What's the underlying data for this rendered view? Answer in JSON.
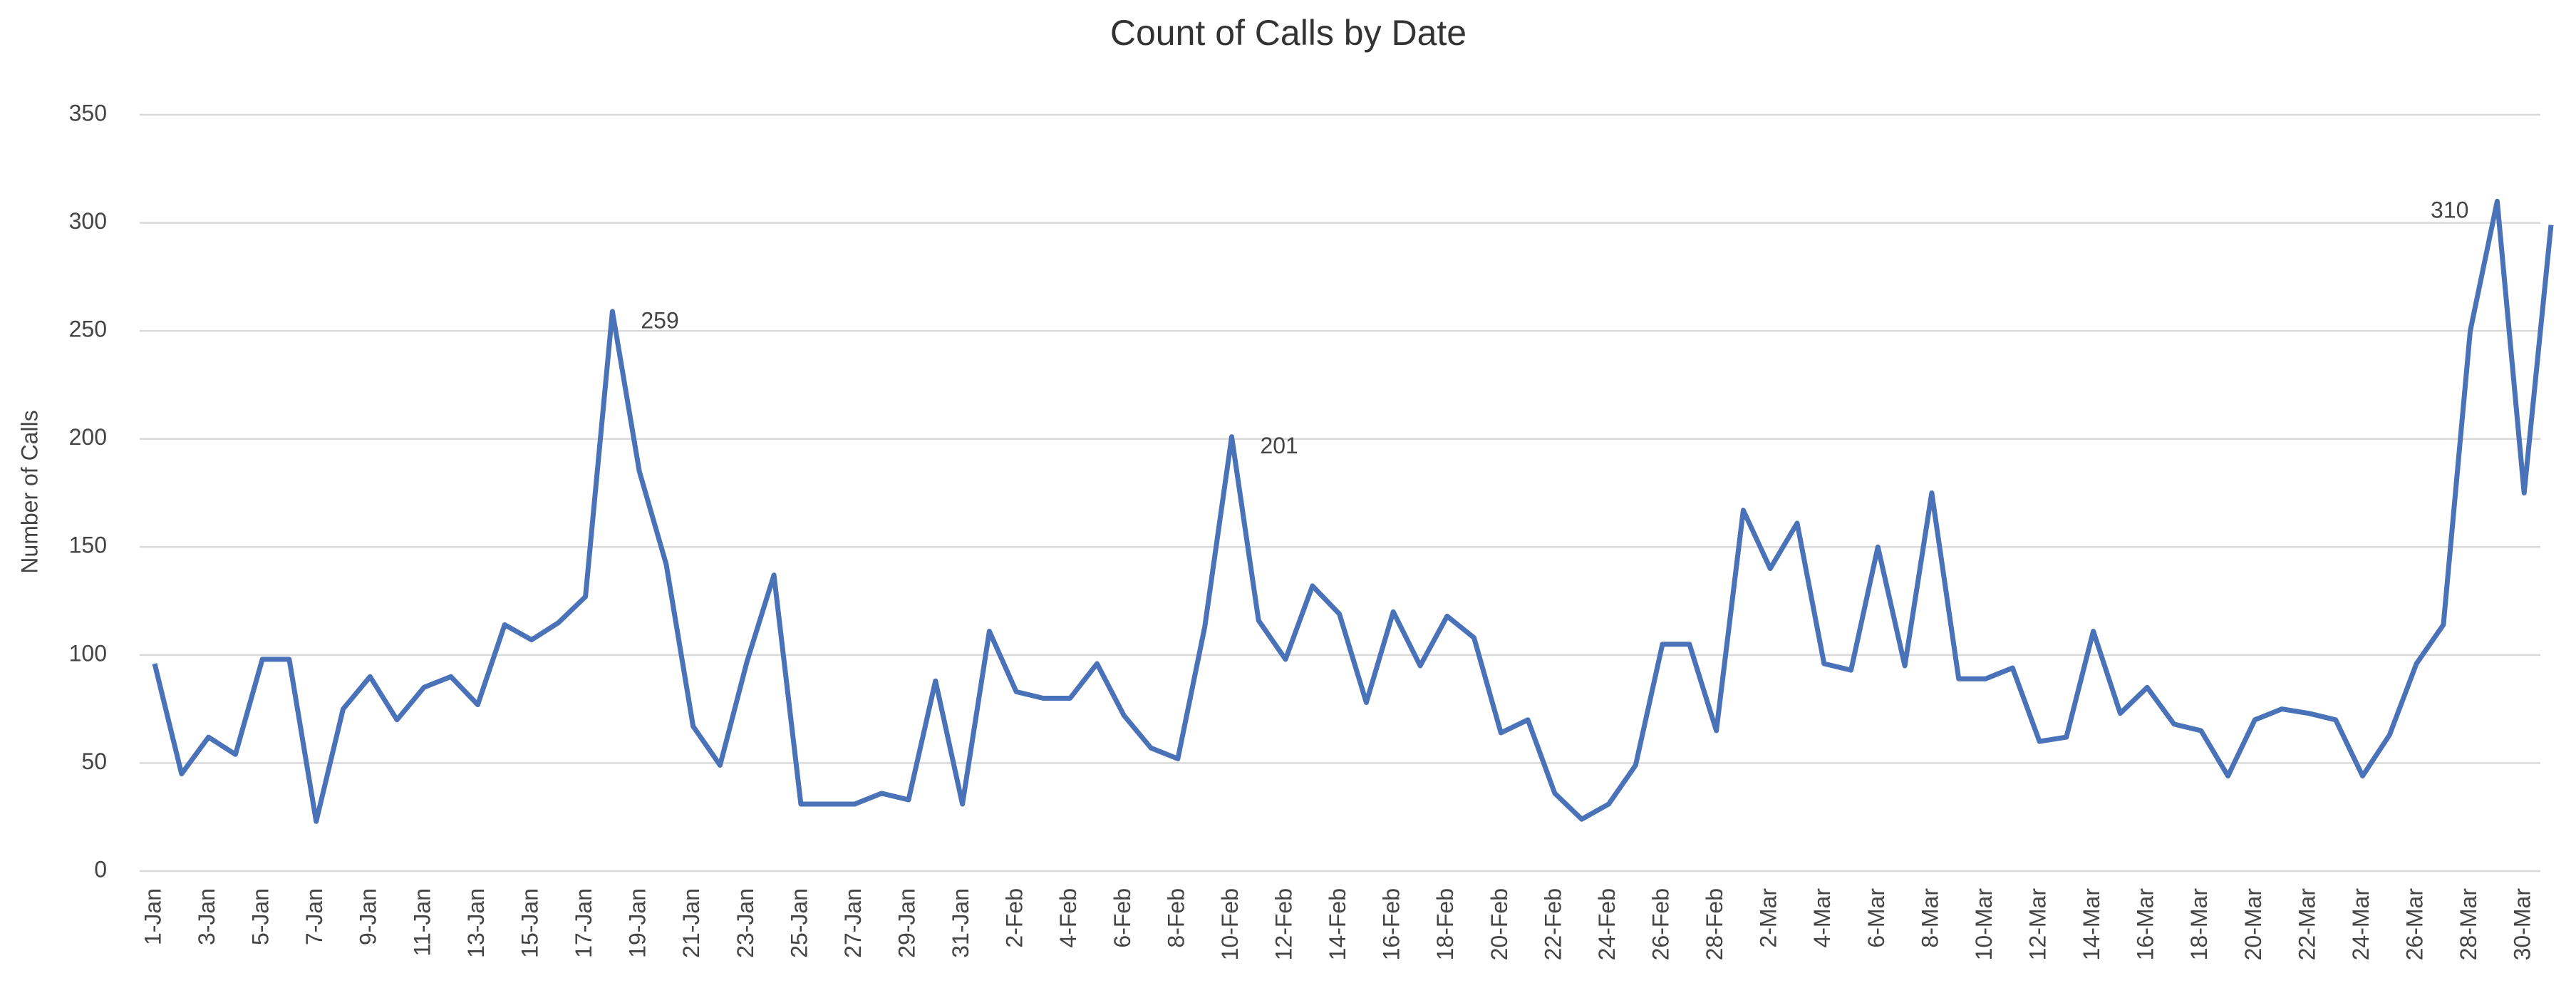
{
  "chart_data": {
    "type": "line",
    "title": "Count of Calls by Date",
    "y_label": "Number of Calls",
    "categories": [
      "1-Jan",
      null,
      "3-Jan",
      null,
      "5-Jan",
      null,
      "7-Jan",
      null,
      "9-Jan",
      null,
      "11-Jan",
      null,
      "13-Jan",
      null,
      "15-Jan",
      null,
      "17-Jan",
      null,
      "19-Jan",
      null,
      "21-Jan",
      null,
      "23-Jan",
      null,
      "25-Jan",
      null,
      "27-Jan",
      null,
      "29-Jan",
      null,
      "31-Jan",
      null,
      "2-Feb",
      null,
      "4-Feb",
      null,
      "6-Feb",
      null,
      "8-Feb",
      null,
      "10-Feb",
      null,
      "12-Feb",
      null,
      "14-Feb",
      null,
      "16-Feb",
      null,
      "18-Feb",
      null,
      "20-Feb",
      null,
      "22-Feb",
      null,
      "24-Feb",
      null,
      "26-Feb",
      null,
      "28-Feb",
      null,
      "2-Mar",
      null,
      "4-Mar",
      null,
      "6-Mar",
      null,
      "8-Mar",
      null,
      "10-Mar",
      null,
      "12-Mar",
      null,
      "14-Mar",
      null,
      "16-Mar",
      null,
      "18-Mar",
      null,
      "20-Mar",
      null,
      "22-Mar",
      null,
      "24-Mar",
      null,
      "26-Mar",
      null,
      "28-Mar",
      null,
      "30-Mar",
      null
    ],
    "values": [
      96,
      45,
      62,
      54,
      98,
      98,
      23,
      75,
      90,
      70,
      85,
      90,
      77,
      114,
      107,
      115,
      127,
      259,
      185,
      142,
      67,
      49,
      97,
      137,
      31,
      31,
      31,
      36,
      33,
      88,
      31,
      111,
      83,
      80,
      80,
      96,
      72,
      57,
      52,
      113,
      201,
      116,
      98,
      132,
      119,
      78,
      120,
      95,
      118,
      108,
      64,
      70,
      36,
      24,
      31,
      49,
      105,
      105,
      65,
      167,
      140,
      161,
      96,
      93,
      150,
      95,
      175,
      89,
      89,
      94,
      60,
      62,
      111,
      73,
      85,
      68,
      65,
      44,
      70,
      75,
      73,
      70,
      44,
      63,
      96,
      114,
      250,
      310,
      175,
      299
    ],
    "value_labels": [
      null,
      null,
      null,
      null,
      null,
      null,
      null,
      null,
      null,
      null,
      null,
      null,
      null,
      null,
      null,
      null,
      null,
      "259",
      null,
      null,
      null,
      null,
      null,
      null,
      null,
      null,
      null,
      null,
      null,
      null,
      null,
      null,
      null,
      null,
      null,
      null,
      null,
      null,
      null,
      null,
      "201",
      null,
      null,
      null,
      null,
      null,
      null,
      null,
      null,
      null,
      null,
      null,
      null,
      null,
      null,
      null,
      null,
      null,
      null,
      null,
      null,
      null,
      null,
      null,
      null,
      null,
      null,
      null,
      null,
      null,
      null,
      null,
      null,
      null,
      null,
      null,
      null,
      null,
      null,
      null,
      null,
      null,
      null,
      null,
      null,
      null,
      null,
      "310",
      null,
      null
    ],
    "color": "#4a72b8",
    "ylim": [
      0,
      350
    ],
    "yticks": [
      0,
      50,
      100,
      150,
      200,
      250,
      300,
      350
    ],
    "grid": true
  }
}
